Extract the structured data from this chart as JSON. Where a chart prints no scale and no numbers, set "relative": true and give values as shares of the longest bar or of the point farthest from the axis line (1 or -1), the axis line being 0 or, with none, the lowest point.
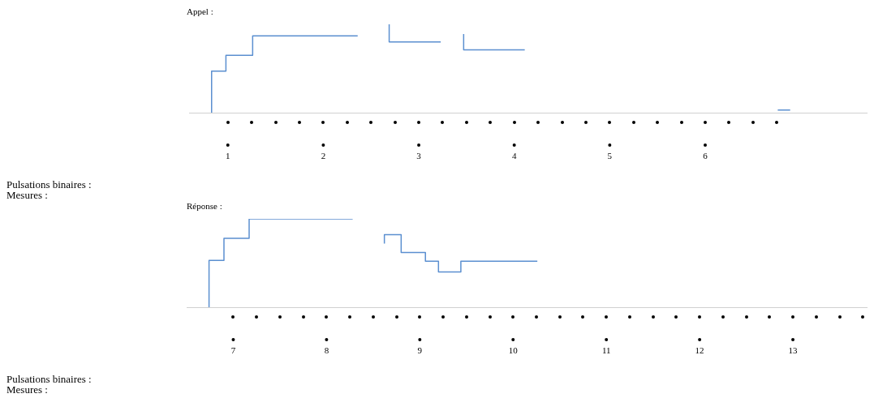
{
  "chart_data": [
    {
      "type": "step",
      "title": "Appel :",
      "relative": true,
      "grid": false,
      "legend": false,
      "annotations": [
        "Pulsations binaires :",
        "Mesures :"
      ],
      "xlim": [
        0.6,
        7.7
      ],
      "xticks": [
        1,
        2,
        3,
        4,
        5,
        6
      ],
      "series": [
        {
          "color": "#5b8fd0",
          "x": [
            0.83,
            0.98,
            1.26,
            1.64,
            2.36,
            2.5,
            2.69,
            2.86,
            3.23,
            3.3,
            3.47,
            3.7,
            4.11,
            4.5,
            6.76,
            6.89
          ],
          "values": [
            0,
            0.47,
            0.65,
            0.87,
            0.87,
            null,
            1,
            0.8,
            0.8,
            null,
            0.89,
            0.71,
            0.71,
            null,
            0.03,
            0.03
          ]
        }
      ]
    },
    {
      "type": "step",
      "title": "Réponse :",
      "relative": true,
      "grid": false,
      "legend": false,
      "annotations": [
        "Pulsations binaires :",
        "Mesures :"
      ],
      "xlim": [
        6.5,
        13.8
      ],
      "xticks": [
        7,
        8,
        9,
        10,
        11,
        12,
        13
      ],
      "series": [
        {
          "color": "#5b8fd0",
          "x": [
            6.74,
            6.9,
            7.17,
            7.55,
            8.28,
            8.45,
            8.62,
            8.8,
            9.06,
            9.2,
            9.44,
            9.62,
            10.26
          ],
          "values": [
            0,
            0.53,
            0.78,
            1,
            1,
            null,
            0.72,
            0.82,
            0.62,
            0.52,
            0.4,
            0.52,
            0.52
          ]
        }
      ]
    }
  ]
}
